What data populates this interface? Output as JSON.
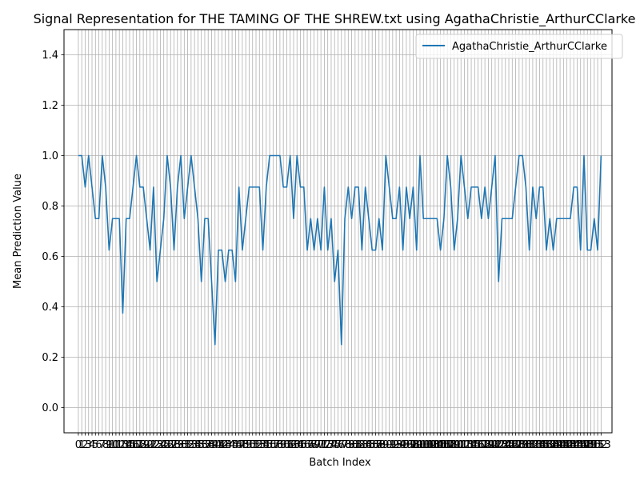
{
  "chart_data": {
    "type": "line",
    "title": "Signal Representation for THE TAMING OF THE SHREW.txt using AgathaChristie_ArthurCClarke",
    "xlabel": "Batch Index",
    "ylabel": "Mean Prediction Value",
    "xlim": [
      -4.2,
      156.2
    ],
    "ylim": [
      -0.1,
      1.5
    ],
    "yticks": [
      0.0,
      0.2,
      0.4,
      0.6,
      0.8,
      1.0,
      1.2,
      1.4
    ],
    "grid": true,
    "legend_position": "top-right",
    "series": [
      {
        "name": "AgathaChristie_ArthurCClarke",
        "color": "#1f77b4",
        "values": [
          1.0,
          1.0,
          0.875,
          1.0,
          0.875,
          0.75,
          0.75,
          1.0,
          0.875,
          0.625,
          0.75,
          0.75,
          0.75,
          0.375,
          0.75,
          0.75,
          0.875,
          1.0,
          0.875,
          0.875,
          0.75,
          0.625,
          0.875,
          0.5,
          0.625,
          0.75,
          1.0,
          0.875,
          0.625,
          0.875,
          1.0,
          0.75,
          0.875,
          1.0,
          0.875,
          0.75,
          0.5,
          0.75,
          0.75,
          0.5,
          0.25,
          0.625,
          0.625,
          0.5,
          0.625,
          0.625,
          0.5,
          0.875,
          0.625,
          0.75,
          0.875,
          0.875,
          0.875,
          0.875,
          0.625,
          0.875,
          1.0,
          1.0,
          1.0,
          1.0,
          0.875,
          0.875,
          1.0,
          0.75,
          1.0,
          0.875,
          0.875,
          0.625,
          0.75,
          0.625,
          0.75,
          0.625,
          0.875,
          0.625,
          0.75,
          0.5,
          0.625,
          0.25,
          0.75,
          0.875,
          0.75,
          0.875,
          0.875,
          0.625,
          0.875,
          0.75,
          0.625,
          0.625,
          0.75,
          0.625,
          1.0,
          0.875,
          0.75,
          0.75,
          0.875,
          0.625,
          0.875,
          0.75,
          0.875,
          0.625,
          1.0,
          0.75,
          0.75,
          0.75,
          0.75,
          0.75,
          0.625,
          0.75,
          1.0,
          0.875,
          0.625,
          0.75,
          1.0,
          0.875,
          0.75,
          0.875,
          0.875,
          0.875,
          0.75,
          0.875,
          0.75,
          0.875,
          1.0,
          0.5,
          0.75,
          0.75,
          0.75,
          0.75,
          0.875,
          1.0,
          1.0,
          0.875,
          0.625,
          0.875,
          0.75,
          0.875,
          0.875,
          0.625,
          0.75,
          0.625,
          0.75,
          0.75,
          0.75,
          0.75,
          0.75,
          0.875,
          0.875,
          0.625,
          1.0,
          0.625,
          0.625,
          0.75,
          0.625,
          1.0
        ]
      }
    ]
  }
}
